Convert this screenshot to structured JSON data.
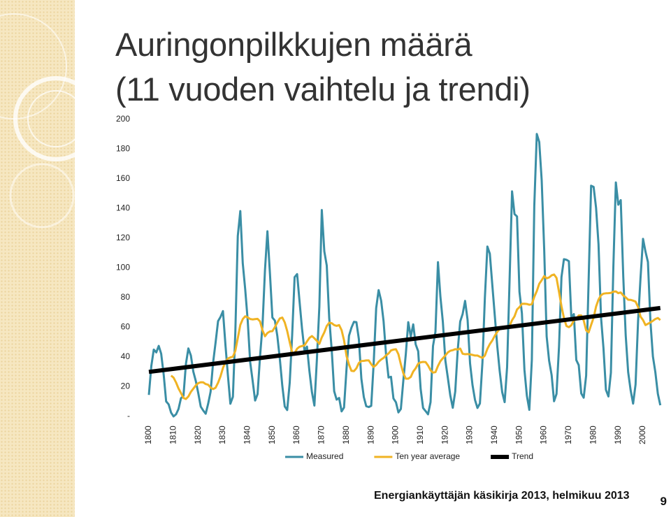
{
  "chart_data": {
    "type": "line",
    "title": [
      "Auringonpilkkujen määrä",
      "(11 vuoden vaihtelu ja trendi)"
    ],
    "x": [
      1800,
      1801,
      1802,
      1803,
      1804,
      1805,
      1806,
      1807,
      1808,
      1809,
      1810,
      1811,
      1812,
      1813,
      1814,
      1815,
      1816,
      1817,
      1818,
      1819,
      1820,
      1821,
      1822,
      1823,
      1824,
      1825,
      1826,
      1827,
      1828,
      1829,
      1830,
      1831,
      1832,
      1833,
      1834,
      1835,
      1836,
      1837,
      1838,
      1839,
      1840,
      1841,
      1842,
      1843,
      1844,
      1845,
      1846,
      1847,
      1848,
      1849,
      1850,
      1851,
      1852,
      1853,
      1854,
      1855,
      1856,
      1857,
      1858,
      1859,
      1860,
      1861,
      1862,
      1863,
      1864,
      1865,
      1866,
      1867,
      1868,
      1869,
      1870,
      1871,
      1872,
      1873,
      1874,
      1875,
      1876,
      1877,
      1878,
      1879,
      1880,
      1881,
      1882,
      1883,
      1884,
      1885,
      1886,
      1887,
      1888,
      1889,
      1890,
      1891,
      1892,
      1893,
      1894,
      1895,
      1896,
      1897,
      1898,
      1899,
      1900,
      1901,
      1902,
      1903,
      1904,
      1905,
      1906,
      1907,
      1908,
      1909,
      1910,
      1911,
      1912,
      1913,
      1914,
      1915,
      1916,
      1917,
      1918,
      1919,
      1920,
      1921,
      1922,
      1923,
      1924,
      1925,
      1926,
      1927,
      1928,
      1929,
      1930,
      1931,
      1932,
      1933,
      1934,
      1935,
      1936,
      1937,
      1938,
      1939,
      1940,
      1941,
      1942,
      1943,
      1944,
      1945,
      1946,
      1947,
      1948,
      1949,
      1950,
      1951,
      1952,
      1953,
      1954,
      1955,
      1956,
      1957,
      1958,
      1959,
      1960,
      1961,
      1962,
      1963,
      1964,
      1965,
      1966,
      1967,
      1968,
      1969,
      1970,
      1971,
      1972,
      1973,
      1974,
      1975,
      1976,
      1977,
      1978,
      1979,
      1980,
      1981,
      1982,
      1983,
      1984,
      1985,
      1986,
      1987,
      1988,
      1989,
      1990,
      1991,
      1992,
      1993,
      1994,
      1995,
      1996,
      1997,
      1998,
      1999,
      2000,
      2001,
      2002,
      2003,
      2004,
      2005,
      2006,
      2007
    ],
    "series": [
      {
        "name": "Measured",
        "color": "#3a8ea5",
        "width": 3,
        "values": [
          14.5,
          34,
          45,
          43.1,
          47.5,
          42.2,
          28.1,
          10.1,
          8.1,
          2.5,
          0,
          1.4,
          5,
          12.2,
          13.9,
          35.4,
          45.8,
          41,
          30.1,
          23.9,
          15.6,
          6.6,
          4,
          1.8,
          8.5,
          16.6,
          36.3,
          49.6,
          64.2,
          67,
          70.9,
          47.8,
          27.5,
          8.5,
          13.2,
          56.9,
          121.5,
          138.3,
          103.2,
          85.7,
          64.6,
          36.7,
          24.2,
          10.7,
          15,
          40.1,
          61.5,
          98.5,
          124.7,
          96.3,
          66.6,
          64.5,
          54.1,
          39,
          20.6,
          6.7,
          4.3,
          22.7,
          54.8,
          93.8,
          95.8,
          77.2,
          59.1,
          44,
          47,
          30.5,
          16.3,
          7.3,
          37.6,
          74,
          139,
          111.2,
          101.6,
          66.2,
          44.7,
          17,
          11.3,
          12.4,
          3.4,
          6,
          32.3,
          54.3,
          59.7,
          63.7,
          63.5,
          52.2,
          25.4,
          13.1,
          6.8,
          6.3,
          7.1,
          35.6,
          73,
          85.1,
          78,
          64,
          41.8,
          26.2,
          26.7,
          12.1,
          9.5,
          2.7,
          5,
          24.4,
          42,
          63.5,
          53.8,
          62,
          48.5,
          43.9,
          18.6,
          5.7,
          3.6,
          1.4,
          9.6,
          47.4,
          57.1,
          103.9,
          80.6,
          63.6,
          37.6,
          26.1,
          14.2,
          5.8,
          16.7,
          44.3,
          63.9,
          69,
          77.8,
          64.9,
          35.7,
          21.2,
          11.1,
          5.7,
          8.7,
          36.1,
          79.7,
          114.4,
          109.6,
          88.8,
          67.8,
          47.5,
          30.6,
          16.3,
          9.6,
          33.2,
          92.6,
          151.6,
          136.3,
          134.7,
          83.9,
          69.4,
          31.5,
          13.9,
          4.4,
          38,
          141.7,
          190.2,
          184.8,
          159,
          112.3,
          53.9,
          37.6,
          27.9,
          10.2,
          15.1,
          47,
          93.8,
          105.9,
          105.5,
          104.5,
          66.6,
          68.9,
          38,
          34.5,
          15.5,
          12.6,
          27.5,
          92.5,
          155.4,
          154.6,
          140.4,
          115.9,
          66.6,
          45.9,
          17.9,
          13.4,
          29.4,
          100.2,
          157.6,
          142.6,
          145.7,
          94.3,
          54.6,
          29.9,
          17.5,
          8.6,
          21.5,
          64.3,
          93.3,
          119.6,
          111,
          104,
          63.7,
          40.4,
          29.8,
          15.2,
          7.5
        ]
      },
      {
        "name": "Ten year average",
        "color": "#f0b323",
        "width": 3,
        "values": [
          null,
          null,
          null,
          null,
          null,
          null,
          null,
          null,
          null,
          27.5,
          26.1,
          22.8,
          18.8,
          15.7,
          12.4,
          11.7,
          13.4,
          16.5,
          18.7,
          20.9,
          22.4,
          23,
          22.9,
          21.8,
          21.3,
          19.4,
          18.4,
          19.3,
          22.7,
          27,
          32.6,
          36.7,
          39,
          39.7,
          40.2,
          44.2,
          52.7,
          61.6,
          65.5,
          67.4,
          66.7,
          65.6,
          65.3,
          65.5,
          65.7,
          64,
          58,
          54,
          56.2,
          57.2,
          57.4,
          60.2,
          63.2,
          66,
          66.6,
          63.3,
          57.5,
          50,
          43,
          42.7,
          45.6,
          46.9,
          47.4,
          47.9,
          50.5,
          52.9,
          54.1,
          52.6,
          50.9,
          48.9,
          53.2,
          56.6,
          60.9,
          63.1,
          62.8,
          61.5,
          61,
          61.5,
          58.1,
          51.3,
          40.6,
          34.9,
          30.7,
          30.5,
          32.4,
          35.9,
          37.3,
          37.4,
          37.7,
          37.7,
          35.2,
          33.3,
          34.7,
          36.8,
          38.3,
          39.4,
          41.1,
          42.4,
          44.4,
          45,
          45.2,
          41.9,
          35.1,
          29,
          25.4,
          25.4,
          26.6,
          30.2,
          32.4,
          35.5,
          36.4,
          36.7,
          36.6,
          34.3,
          31.1,
          29.5,
          29.8,
          34,
          37.2,
          39.2,
          41.1,
          43.1,
          44.2,
          44.6,
          45.3,
          45,
          45.7,
          42.2,
          41.9,
          42,
          41.8,
          41.4,
          41,
          41,
          40.2,
          39.4,
          41,
          45.5,
          48.7,
          51.1,
          54.3,
          56.9,
          58.9,
          60,
          60,
          59.8,
          61,
          64.8,
          67.4,
          72,
          73.6,
          75.8,
          75.9,
          75.7,
          75.2,
          75.6,
          80.5,
          84.4,
          89.3,
          91.7,
          94.5,
          93,
          93.6,
          95,
          95.6,
          93.3,
          83.8,
          74.2,
          66.3,
          60.9,
          60.1,
          61.4,
          64.5,
          65.6,
          68,
          68,
          64.6,
          58,
          56.6,
          61.6,
          66.6,
          74,
          78.7,
          81.6,
          82.7,
          82.9,
          83,
          83.2,
          84,
          84.2,
          83,
          83.5,
          81.4,
          80.2,
          78.6,
          78.5,
          78,
          77.3,
          73.7,
          67.2,
          64.9,
          61.5,
          62.4,
          63.3,
          64.4,
          65.6,
          66.3,
          64.9
        ]
      },
      {
        "name": "Trend",
        "color": "#000000",
        "width": 6,
        "x": [
          1800,
          2007
        ],
        "values": [
          30,
          73
        ]
      }
    ],
    "xlim": [
      1795,
      2010
    ],
    "xticks": [
      1800,
      1810,
      1820,
      1830,
      1840,
      1850,
      1860,
      1870,
      1880,
      1890,
      1900,
      1910,
      1920,
      1930,
      1940,
      1950,
      1960,
      1970,
      1980,
      1990,
      2000
    ],
    "ylim": [
      0,
      200
    ],
    "yticks": [
      {
        "value": 0,
        "label": "-"
      },
      20,
      40,
      60,
      80,
      100,
      120,
      140,
      160,
      180,
      200
    ],
    "grid": false,
    "legend": "bottom"
  },
  "footer": {
    "source": "Energiankäyttäjän käsikirja 2013, helmikuu 2013",
    "page": 9
  }
}
